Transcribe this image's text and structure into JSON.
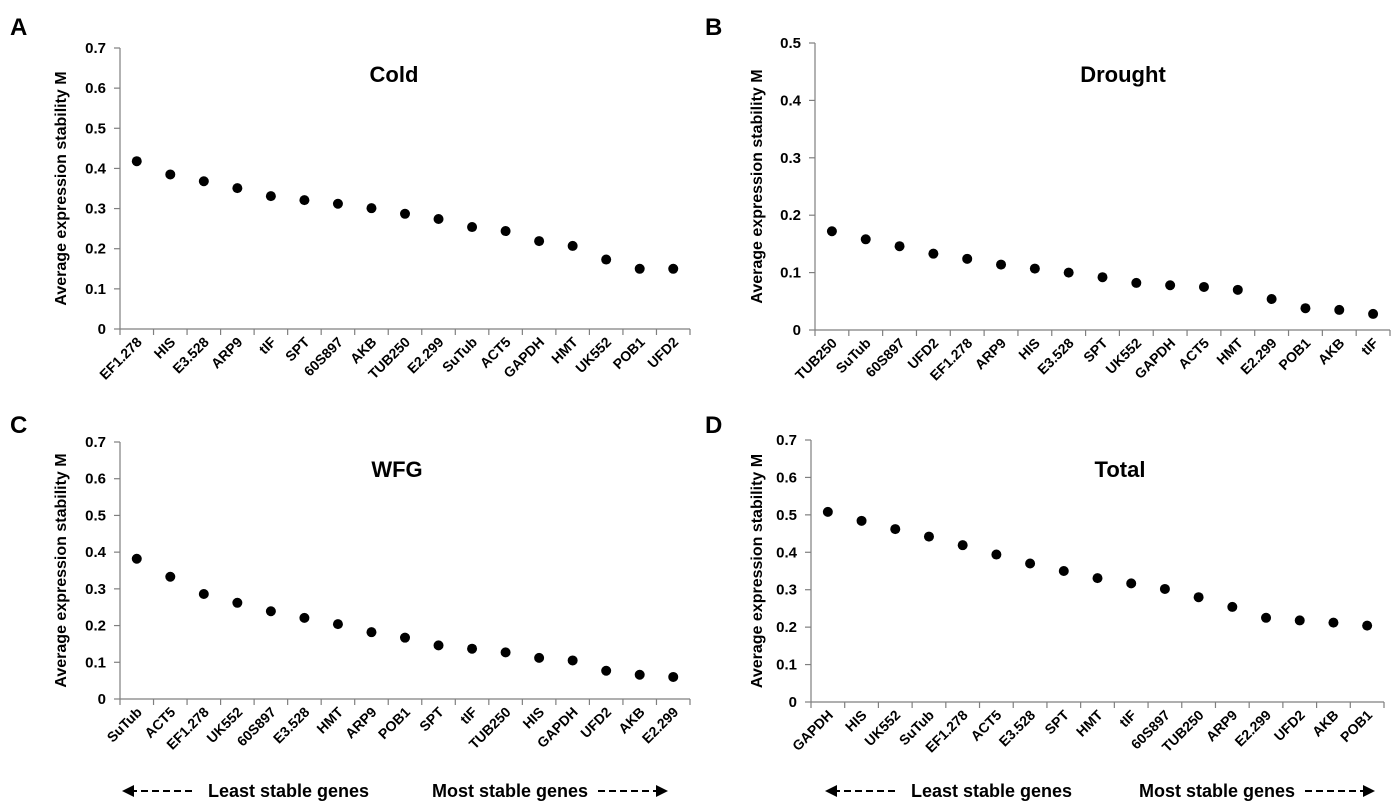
{
  "figure": {
    "bottom_left": {
      "left_text": "Least stable genes",
      "right_text": "Most stable genes"
    },
    "bottom_right": {
      "left_text": "Least stable genes",
      "right_text": "Most stable genes"
    }
  },
  "chart_data": [
    {
      "panel": "A",
      "type": "scatter",
      "title": "Cold",
      "xlabel": "",
      "ylabel": "Average expression stability M",
      "ylim": [
        0,
        0.7
      ],
      "yticks": [
        "0",
        "0.1",
        "0.2",
        "0.3",
        "0.4",
        "0.5",
        "0.6",
        "0.7"
      ],
      "grid": false,
      "categories": [
        "EF1.278",
        "HIS",
        "E3.528",
        "ARP9",
        "tIF",
        "SPT",
        "60S897",
        "AKB",
        "TUB250",
        "E2.299",
        "SuTub",
        "ACT5",
        "GAPDH",
        "HMT",
        "UK552",
        "POB1",
        "UFD2"
      ],
      "values": [
        0.418,
        0.385,
        0.368,
        0.351,
        0.331,
        0.321,
        0.312,
        0.301,
        0.287,
        0.274,
        0.254,
        0.244,
        0.219,
        0.207,
        0.173,
        0.15,
        0.15
      ],
      "marker_color": "#000000"
    },
    {
      "panel": "B",
      "type": "scatter",
      "title": "Drought",
      "xlabel": "",
      "ylabel": "Average expression stability M",
      "ylim": [
        0,
        0.5
      ],
      "yticks": [
        "0",
        "0.1",
        "0.2",
        "0.3",
        "0.4",
        "0.5"
      ],
      "grid": false,
      "categories": [
        "TUB250",
        "SuTub",
        "60S897",
        "UFD2",
        "EF1.278",
        "ARP9",
        "HIS",
        "E3.528",
        "SPT",
        "UK552",
        "GAPDH",
        "ACT5",
        "HMT",
        "E2.299",
        "POB1",
        "AKB",
        "tIF"
      ],
      "values": [
        0.172,
        0.158,
        0.146,
        0.133,
        0.124,
        0.114,
        0.107,
        0.1,
        0.092,
        0.082,
        0.078,
        0.075,
        0.07,
        0.054,
        0.038,
        0.035,
        0.028
      ],
      "marker_color": "#000000"
    },
    {
      "panel": "C",
      "type": "scatter",
      "title": "WFG",
      "xlabel": "",
      "ylabel": "Average expression stability M",
      "ylim": [
        0,
        0.7
      ],
      "yticks": [
        "0",
        "0.1",
        "0.2",
        "0.3",
        "0.4",
        "0.5",
        "0.6",
        "0.7"
      ],
      "grid": false,
      "categories": [
        "SuTub",
        "ACT5",
        "EF1.278",
        "UK552",
        "60S897",
        "E3.528",
        "HMT",
        "ARP9",
        "POB1",
        "SPT",
        "tIF",
        "TUB250",
        "HIS",
        "GAPDH",
        "UFD2",
        "AKB",
        "E2.299"
      ],
      "values": [
        0.382,
        0.333,
        0.286,
        0.262,
        0.239,
        0.221,
        0.204,
        0.182,
        0.167,
        0.146,
        0.137,
        0.127,
        0.112,
        0.105,
        0.077,
        0.066,
        0.06
      ],
      "marker_color": "#000000"
    },
    {
      "panel": "D",
      "type": "scatter",
      "title": "Total",
      "xlabel": "",
      "ylabel": "Average expression stability M",
      "ylim": [
        0,
        0.7
      ],
      "yticks": [
        "0",
        "0.1",
        "0.2",
        "0.3",
        "0.4",
        "0.5",
        "0.6",
        "0.7"
      ],
      "grid": false,
      "categories": [
        "GAPDH",
        "HIS",
        "UK552",
        "SuTub",
        "EF1.278",
        "ACT5",
        "E3.528",
        "SPT",
        "HMT",
        "tIF",
        "60S897",
        "TUB250",
        "ARP9",
        "E2.299",
        "UFD2",
        "AKB",
        "POB1"
      ],
      "values": [
        0.508,
        0.484,
        0.462,
        0.442,
        0.419,
        0.394,
        0.37,
        0.35,
        0.331,
        0.317,
        0.302,
        0.28,
        0.254,
        0.225,
        0.218,
        0.212,
        0.204
      ],
      "marker_color": "#000000"
    }
  ]
}
